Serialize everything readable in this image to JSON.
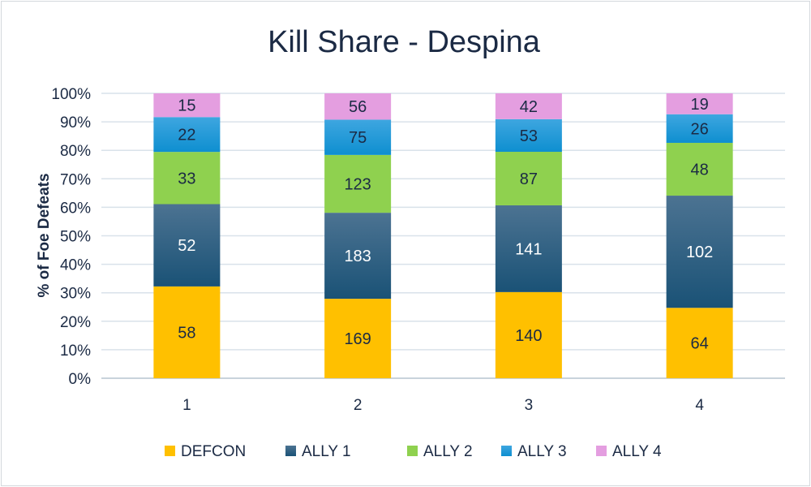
{
  "chart_data": {
    "type": "bar",
    "stacked": "percent",
    "title": "Kill Share - Despina",
    "xlabel": "",
    "ylabel": "% of Foe Defeats",
    "ylim": [
      0,
      100
    ],
    "yticks": [
      "0%",
      "10%",
      "20%",
      "30%",
      "40%",
      "50%",
      "60%",
      "70%",
      "80%",
      "90%",
      "100%"
    ],
    "categories": [
      "1",
      "2",
      "3",
      "4"
    ],
    "grid": true,
    "legend_position": "bottom",
    "series": [
      {
        "name": "DEFCON",
        "values": [
          58,
          169,
          140,
          64
        ],
        "color": "#FFC000",
        "label_color": "#1b2a44"
      },
      {
        "name": "ALLY 1",
        "values": [
          52,
          183,
          141,
          102
        ],
        "color": "#1a5276",
        "color_top": "#4c7392",
        "label_color": "#ffffff"
      },
      {
        "name": "ALLY 2",
        "values": [
          33,
          123,
          87,
          48
        ],
        "color": "#8fd14f",
        "label_color": "#1b2a44"
      },
      {
        "name": "ALLY 3",
        "values": [
          22,
          75,
          53,
          26
        ],
        "color": "#0e8fd0",
        "color_top": "#3ea6e0",
        "label_color": "#1b2a44"
      },
      {
        "name": "ALLY 4",
        "values": [
          15,
          56,
          42,
          19
        ],
        "color": "#e49ee0",
        "label_color": "#1b2a44"
      }
    ]
  }
}
